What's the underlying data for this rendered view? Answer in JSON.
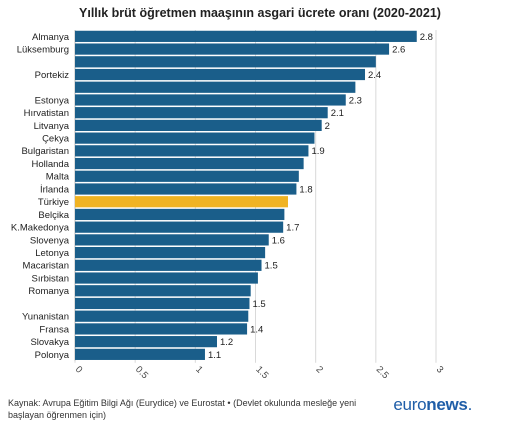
{
  "chart_data": {
    "type": "bar",
    "orientation": "horizontal",
    "title": "Yıllık brüt öğretmen maaşının asgari ücrete oranı (2020-2021)",
    "categories": [
      "Almanya",
      "Lüksemburg",
      "",
      "Portekiz",
      "",
      "Estonya",
      "Hırvatistan",
      "Litvanya",
      "Çekya",
      "Bulgaristan",
      "Hollanda",
      "Malta",
      "İrlanda",
      "Türkiye",
      "Belçika",
      "K.Makedonya",
      "Slovenya",
      "Letonya",
      "Macaristan",
      "Sırbistan",
      "Romanya",
      "",
      "Yunanistan",
      "Fransa",
      "Slovakya",
      "Polonya"
    ],
    "values": [
      2.84,
      2.61,
      2.5,
      2.41,
      2.33,
      2.25,
      2.1,
      2.05,
      1.99,
      1.94,
      1.9,
      1.86,
      1.84,
      1.77,
      1.74,
      1.73,
      1.61,
      1.58,
      1.55,
      1.52,
      1.46,
      1.45,
      1.44,
      1.43,
      1.18,
      1.08
    ],
    "value_labels": [
      "2.8",
      "2.6",
      "",
      "2.4",
      "",
      "2.3",
      "2.1",
      "2",
      "",
      "1.9",
      "",
      "",
      "1.8",
      "",
      "",
      "1.7",
      "1.6",
      "",
      "1.5",
      "",
      "",
      "1.5",
      "",
      "1.4",
      "1.2",
      "1.1"
    ],
    "highlight_category": "Türkiye",
    "xlim": [
      0,
      3
    ],
    "xticks": [
      "0",
      "0.5",
      "1",
      "1.5",
      "2",
      "2.5",
      "3"
    ],
    "grid": true,
    "colors": {
      "bar": "#1a5e8a",
      "highlight": "#f0b323",
      "grid": "#d9d9d9"
    }
  },
  "source": "Kaynak: Avrupa Eğitim Bilgi Ağı (Eurydice) ve Eurostat • (Devlet okulunda mesleğe yeni başlayan öğrenmen için)",
  "brand": {
    "name": "euronews",
    "prefix": "euro",
    "suffix": "news",
    "dot": "."
  }
}
